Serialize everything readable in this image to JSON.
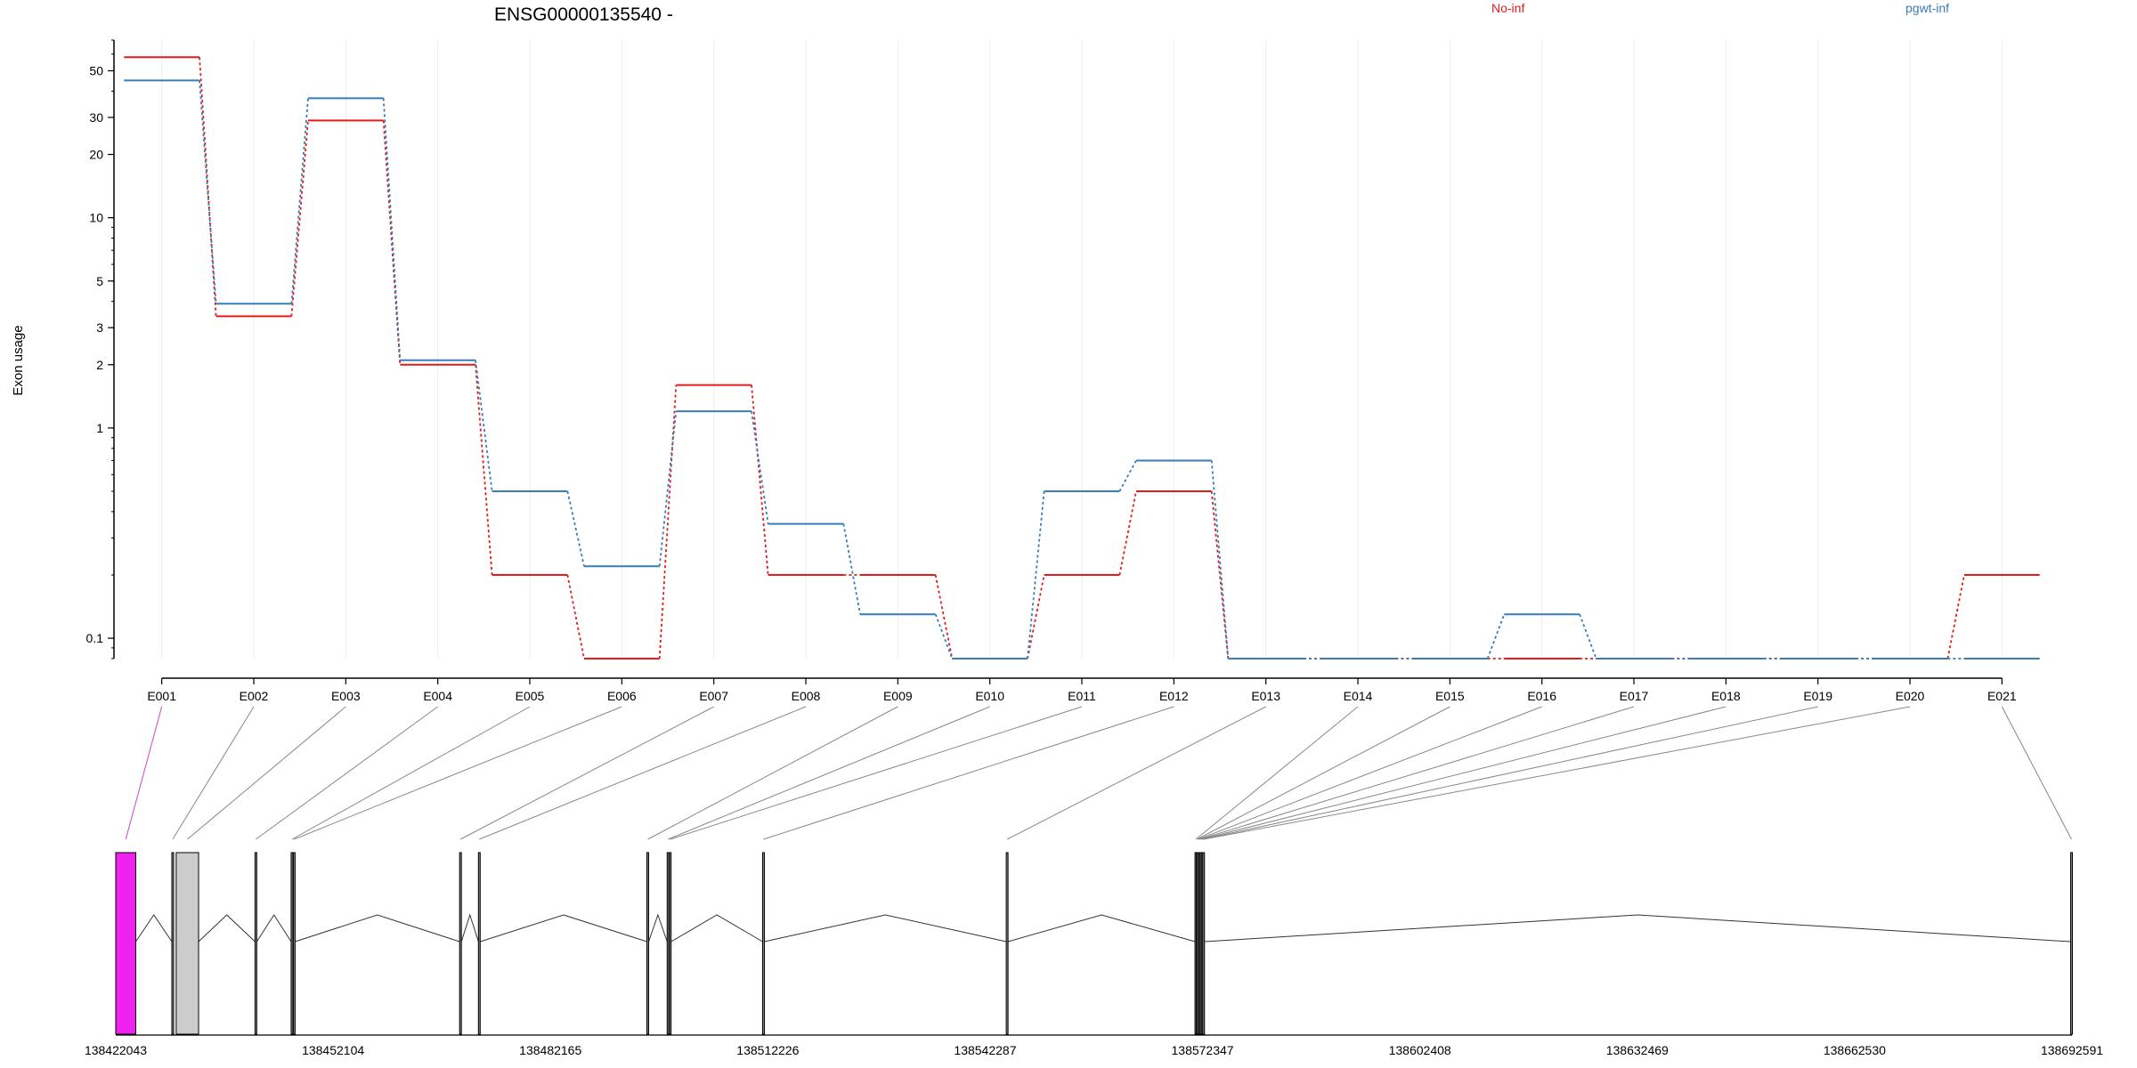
{
  "chart_data": {
    "type": "line",
    "title": "ENSG00000135540 -",
    "ylabel": "Exon usage",
    "y_scale": "log",
    "ylim": [
      0.08,
      70
    ],
    "y_ticks": [
      0.1,
      1,
      2,
      3,
      5,
      10,
      20,
      30,
      50
    ],
    "grid": "vertical, light",
    "legend_placement": "top",
    "categories": [
      "E001",
      "E002",
      "E003",
      "E004",
      "E005",
      "E006",
      "E007",
      "E008",
      "E009",
      "E010",
      "E011",
      "E012",
      "E013",
      "E014",
      "E015",
      "E016",
      "E017",
      "E018",
      "E019",
      "E020",
      "E021"
    ],
    "series": [
      {
        "name": "No-inf",
        "color": "#e41a1c",
        "values": [
          58,
          3.4,
          29,
          2.0,
          0.2,
          0.08,
          1.6,
          0.2,
          0.2,
          0.08,
          0.2,
          0.5,
          0.08,
          0.08,
          0.08,
          0.08,
          0.08,
          0.08,
          0.08,
          0.08,
          0.2
        ]
      },
      {
        "name": "pgwt-inf",
        "color": "#377eb8",
        "values": [
          45,
          3.9,
          37,
          2.1,
          0.5,
          0.22,
          1.2,
          0.35,
          0.13,
          0.08,
          0.5,
          0.7,
          0.08,
          0.08,
          0.08,
          0.13,
          0.08,
          0.08,
          0.08,
          0.08,
          0.08
        ]
      }
    ],
    "gene_model": {
      "genomic_range": [
        138422043,
        138692591
      ],
      "coordinate_ticks": [
        "138422043",
        "138452104",
        "138482165",
        "138512226",
        "138542287",
        "138572347",
        "138602408",
        "138632469",
        "138662530",
        "138692591"
      ],
      "exons": [
        {
          "id": "E001",
          "start": 138422043,
          "end": 138424813,
          "highlight": true
        },
        {
          "id": "E002",
          "start": 138429800,
          "end": 138430000
        },
        {
          "id": "E003",
          "start": 138430400,
          "end": 138433500
        },
        {
          "id": "E004",
          "start": 138441300,
          "end": 138441500
        },
        {
          "id": "E005",
          "start": 138446300,
          "end": 138446500
        },
        {
          "id": "E006",
          "start": 138446600,
          "end": 138446800
        },
        {
          "id": "E007",
          "start": 138469600,
          "end": 138469800
        },
        {
          "id": "E008",
          "start": 138472200,
          "end": 138472400
        },
        {
          "id": "E009",
          "start": 138495500,
          "end": 138495700
        },
        {
          "id": "E010",
          "start": 138498300,
          "end": 138498500
        },
        {
          "id": "E011",
          "start": 138498600,
          "end": 138498800
        },
        {
          "id": "E012",
          "start": 138511500,
          "end": 138511700
        },
        {
          "id": "E013",
          "start": 138545200,
          "end": 138545400
        },
        {
          "id": "E014",
          "start": 138571300,
          "end": 138571450
        },
        {
          "id": "E015",
          "start": 138571480,
          "end": 138571620
        },
        {
          "id": "E016",
          "start": 138571650,
          "end": 138571800
        },
        {
          "id": "E017",
          "start": 138571830,
          "end": 138571980
        },
        {
          "id": "E018",
          "start": 138572010,
          "end": 138572160
        },
        {
          "id": "E019",
          "start": 138572190,
          "end": 138572340
        },
        {
          "id": "E020",
          "start": 138572370,
          "end": 138572600
        },
        {
          "id": "E021",
          "start": 138692400,
          "end": 138692591
        }
      ]
    }
  }
}
